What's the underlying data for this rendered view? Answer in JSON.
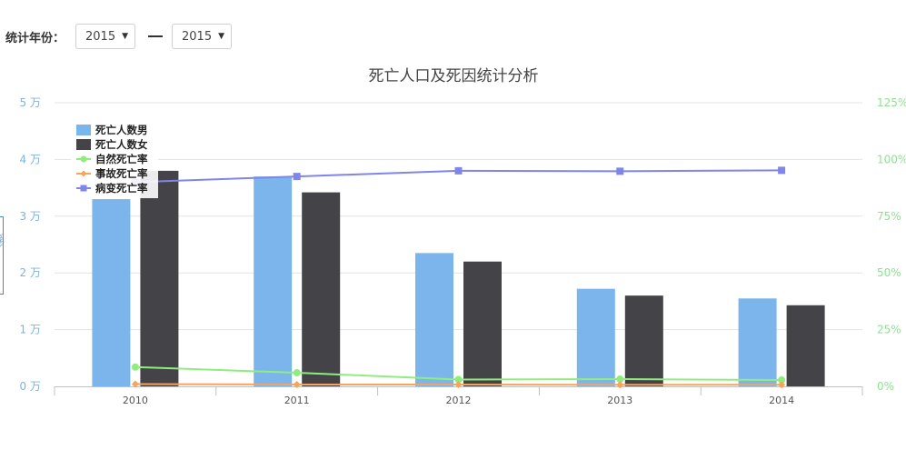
{
  "filter": {
    "label": "统计年份：",
    "from_year": "2015",
    "to_year": "2015",
    "caret": "▼"
  },
  "side_tab": {
    "label": "人数"
  },
  "chart_data": {
    "type": "bar",
    "title": "死亡人口及死因统计分析",
    "categories": [
      "2010",
      "2011",
      "2012",
      "2013",
      "2014"
    ],
    "left_axis": {
      "ticks": [
        "0 万",
        "1 万",
        "2 万",
        "3 万",
        "4 万",
        "5 万"
      ],
      "ylim": [
        0,
        50000
      ]
    },
    "right_axis": {
      "ticks": [
        "0%",
        "25%",
        "50%",
        "75%",
        "100%",
        "125%"
      ],
      "ylim": [
        0,
        125
      ]
    },
    "bar_series": [
      {
        "name": "死亡人数男",
        "color": "#7cb5ec",
        "values": [
          33000,
          37000,
          23500,
          17200,
          15500
        ]
      },
      {
        "name": "死亡人数女",
        "color": "#434348",
        "values": [
          38000,
          34200,
          22000,
          16000,
          14300
        ]
      }
    ],
    "line_series": [
      {
        "name": "自然死亡率",
        "color": "#90ed7d",
        "marker": "circle",
        "values": [
          8.5,
          6,
          3,
          3.2,
          2.8
        ]
      },
      {
        "name": "事故死亡率",
        "color": "#f7a35c",
        "marker": "diamond",
        "values": [
          1,
          0.8,
          0.8,
          0.7,
          0.7
        ]
      },
      {
        "name": "病变死亡率",
        "color": "#8085e9",
        "marker": "square",
        "values": [
          90,
          92.5,
          95,
          94.8,
          95.2
        ]
      }
    ],
    "grid": true,
    "legend_position": "top-left"
  }
}
